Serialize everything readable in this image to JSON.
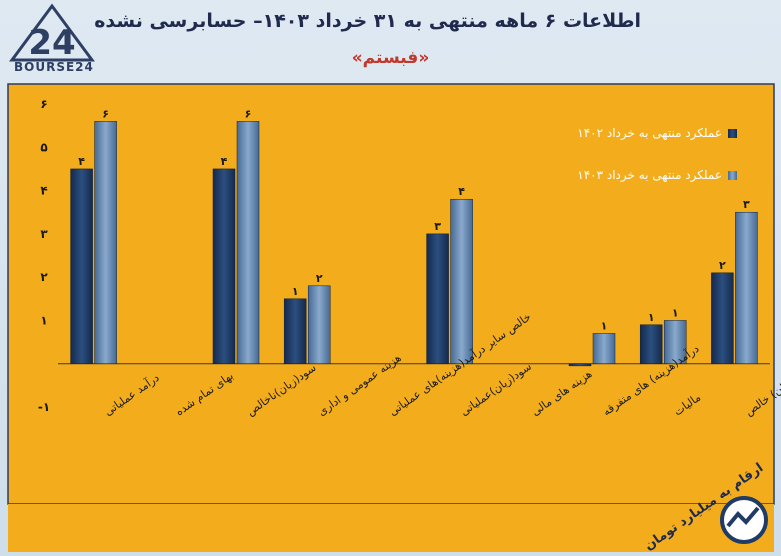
{
  "header": {
    "title": "اطلاعات ۶ ماهه منتهی به ۳۱ خرداد ۱۴۰۳– حسابرسی نشده",
    "subtitle": "«فبستم»",
    "logo_text": "BOURSE24",
    "logo_mark": "24"
  },
  "footer": {
    "unit_note": "ارقام به میلیارد تومان"
  },
  "chart_data": {
    "type": "bar",
    "categories": [
      "درآمد عملیاتی",
      "بهای تمام شده",
      "سود(زیان)ناخالص",
      "هزینه عمومی و اداری",
      "خالص سایر درآمد(هزینه)های عملیاتی",
      "سود(زیان)عملیاتی",
      "هزینه های مالی",
      "درآمد(هزینه) های متفرقه",
      "مالیات",
      "سود(زیان) خالص"
    ],
    "series": [
      {
        "name": "عملکرد منتهی به خرداد ۱۴۰۲",
        "values": [
          4.5,
          0,
          4.5,
          1.5,
          0,
          3,
          0,
          -0.05,
          0.9,
          2.1
        ],
        "labels": [
          "۴",
          "",
          "۴",
          "۱",
          "",
          "۳",
          "",
          "",
          "۱",
          "۲"
        ],
        "color": "#1f3b66"
      },
      {
        "name": "عملکرد منتهی به خرداد ۱۴۰۳",
        "values": [
          5.6,
          0,
          5.6,
          1.8,
          0,
          3.8,
          0,
          0.7,
          1.0,
          3.5
        ],
        "labels": [
          "۶",
          "",
          "۶",
          "۲",
          "",
          "۴",
          "",
          "۱",
          "۱",
          "۳"
        ],
        "color": "#5c7fa8"
      }
    ],
    "y_ticks": [
      "۶",
      "۵",
      "۴",
      "۳",
      "۲",
      "۱",
      "",
      "-۱"
    ],
    "ylim": [
      -1,
      6
    ],
    "legend_position": "top-right",
    "grid": false
  },
  "colors": {
    "plot_background": "#f3ad1c",
    "plot_border": "#2d3b63",
    "title_color": "#1f2a4d",
    "subtitle_color": "#c0392b"
  }
}
